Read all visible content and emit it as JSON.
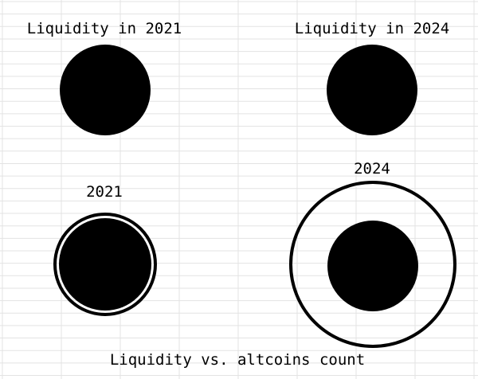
{
  "panels": [
    {
      "title": "Liquidity in 2021"
    },
    {
      "title": "Liquidity in 2024"
    },
    {
      "title": "2021"
    },
    {
      "title": "2024"
    }
  ],
  "caption": "Liquidity vs. altcoins count",
  "colors": {
    "fill": "#000000",
    "grid": "#e3e3e3",
    "background": "#ffffff"
  }
}
